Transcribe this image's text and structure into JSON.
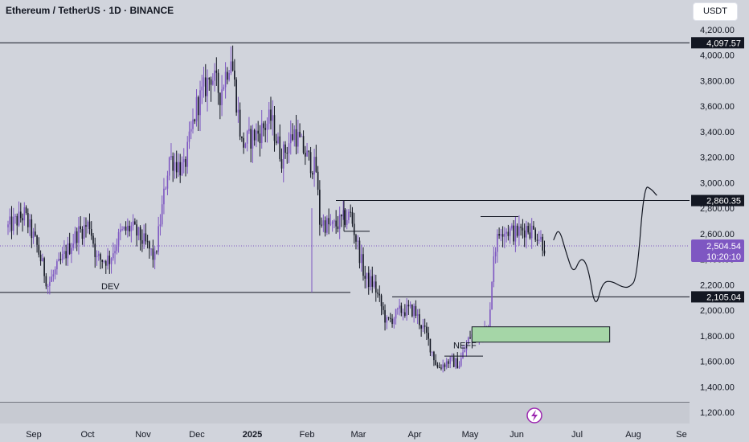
{
  "header": {
    "title": "Ethereum / TetherUS · 1D · BINANCE",
    "currency_label": "USDT"
  },
  "colors": {
    "background": "#d1d4dc",
    "candle_up": "#7e57c2",
    "candle_down": "#131722",
    "zone_fill": "#a5d6a7",
    "last_price_bg": "#7e57c2",
    "level_label_bg": "#131722"
  },
  "chart_data": {
    "type": "candlestick",
    "ylim": [
      1100,
      4300
    ],
    "y_ticks": [
      "4,200.00",
      "4,000.00",
      "3,800.00",
      "3,600.00",
      "3,400.00",
      "3,200.00",
      "3,000.00",
      "2,800.00",
      "2,600.00",
      "2,400.00",
      "2,200.00",
      "2,000.00",
      "1,800.00",
      "1,600.00",
      "1,400.00",
      "1,200.00"
    ],
    "x_ticks": [
      "Sep",
      "Oct",
      "Nov",
      "Dec",
      "2025",
      "Feb",
      "Mar",
      "Apr",
      "May",
      "Jun",
      "Jul",
      "Aug",
      "Se"
    ],
    "x_range": [
      "2024-08-15",
      "2025-09-01"
    ],
    "grid": false,
    "price_path": [
      [
        "2024-08-15",
        2650
      ],
      [
        "2024-08-24",
        2750
      ],
      [
        "2024-08-31",
        2500
      ],
      [
        "2024-09-06",
        2200
      ],
      [
        "2024-09-14",
        2400
      ],
      [
        "2024-09-22",
        2600
      ],
      [
        "2024-09-29",
        2680
      ],
      [
        "2024-10-03",
        2400
      ],
      [
        "2024-10-10",
        2400
      ],
      [
        "2024-10-16",
        2600
      ],
      [
        "2024-10-22",
        2650
      ],
      [
        "2024-10-31",
        2500
      ],
      [
        "2024-11-04",
        2400
      ],
      [
        "2024-11-12",
        3200
      ],
      [
        "2024-11-20",
        3100
      ],
      [
        "2024-11-27",
        3600
      ],
      [
        "2024-12-05",
        3850
      ],
      [
        "2024-12-10",
        3700
      ],
      [
        "2024-12-16",
        4000
      ],
      [
        "2024-12-22",
        3300
      ],
      [
        "2025-01-01",
        3400
      ],
      [
        "2025-01-07",
        3500
      ],
      [
        "2025-01-13",
        3200
      ],
      [
        "2025-01-20",
        3400
      ],
      [
        "2025-01-27",
        3200
      ],
      [
        "2025-02-01",
        3100
      ],
      [
        "2025-02-03",
        2700
      ],
      [
        "2025-02-10",
        2650
      ],
      [
        "2025-02-20",
        2750
      ],
      [
        "2025-02-28",
        2250
      ],
      [
        "2025-03-05",
        2200
      ],
      [
        "2025-03-12",
        1900
      ],
      [
        "2025-03-20",
        2000
      ],
      [
        "2025-03-27",
        2000
      ],
      [
        "2025-04-03",
        1800
      ],
      [
        "2025-04-09",
        1550
      ],
      [
        "2025-04-15",
        1600
      ],
      [
        "2025-04-21",
        1580
      ],
      [
        "2025-04-27",
        1800
      ],
      [
        "2025-05-02",
        1820
      ],
      [
        "2025-05-07",
        1850
      ],
      [
        "2025-05-10",
        2450
      ],
      [
        "2025-05-14",
        2650
      ],
      [
        "2025-05-22",
        2600
      ],
      [
        "2025-05-28",
        2650
      ],
      [
        "2025-06-03",
        2600
      ],
      [
        "2025-06-07",
        2504.54
      ]
    ],
    "levels": [
      {
        "label": "4,097.57",
        "value": 4097.57
      },
      {
        "label": "2,860.35",
        "value": 2860.35
      },
      {
        "label": "2,105.04",
        "value": 2105.04
      }
    ],
    "last_price": {
      "price": "2,504.54",
      "countdown": "10:20:10",
      "value": 2504.54
    },
    "annotations": [
      "DEV",
      "NEFF"
    ],
    "demand_zone": {
      "start": "2025-04-28",
      "end": "2025-07-13",
      "low": 1750,
      "high": 1870
    },
    "projection": [
      [
        "2025-06-12",
        2550
      ],
      [
        "2025-06-15",
        2650
      ],
      [
        "2025-06-19",
        2450
      ],
      [
        "2025-06-23",
        2280
      ],
      [
        "2025-06-27",
        2420
      ],
      [
        "2025-07-01",
        2350
      ],
      [
        "2025-07-05",
        2000
      ],
      [
        "2025-07-09",
        2220
      ],
      [
        "2025-07-14",
        2230
      ],
      [
        "2025-07-20",
        2180
      ],
      [
        "2025-07-24",
        2180
      ],
      [
        "2025-07-28",
        2250
      ],
      [
        "2025-08-01",
        2980
      ],
      [
        "2025-08-05",
        2950
      ],
      [
        "2025-08-08",
        2900
      ]
    ]
  }
}
